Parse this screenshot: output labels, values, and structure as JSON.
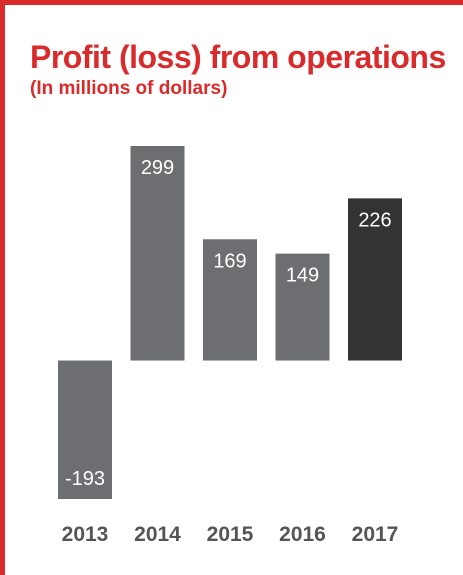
{
  "title": "Profit (loss) from operations",
  "subtitle": "(In millions of dollars)",
  "colors": {
    "accent": "#d92b2b",
    "bar": "#6d6e71",
    "bar_highlight": "#333334",
    "value_label": "#ffffff",
    "year_label": "#555555"
  },
  "chart_data": {
    "type": "bar",
    "title": "Profit (loss) from operations",
    "subtitle": "(In millions of dollars)",
    "categories": [
      "2013",
      "2014",
      "2015",
      "2016",
      "2017"
    ],
    "values": [
      -193,
      299,
      169,
      149,
      226
    ],
    "value_labels": [
      "-193",
      "299",
      "169",
      "149",
      "226"
    ],
    "highlight_category": "2017",
    "xlabel": "",
    "ylabel": "",
    "ylim": [
      -193,
      299
    ],
    "grid": false,
    "legend": "none"
  }
}
